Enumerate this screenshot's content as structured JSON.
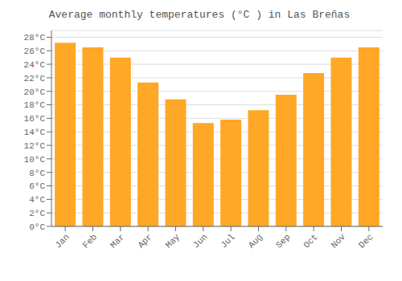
{
  "chart_data": {
    "type": "bar",
    "title": "Average monthly temperatures (°C ) in Las Breñas",
    "categories": [
      "Jan",
      "Feb",
      "Mar",
      "Apr",
      "May",
      "Jun",
      "Jul",
      "Aug",
      "Sep",
      "Oct",
      "Nov",
      "Dec"
    ],
    "values": [
      27.2,
      26.5,
      25.0,
      21.3,
      18.8,
      15.3,
      15.8,
      17.2,
      19.5,
      22.7,
      25.0,
      26.5
    ],
    "color": "#FFA726",
    "ylim": [
      0,
      29
    ],
    "yticks": [
      {
        "value": 0,
        "label": "0°C"
      },
      {
        "value": 2,
        "label": "2°C"
      },
      {
        "value": 4,
        "label": "4°C"
      },
      {
        "value": 6,
        "label": "6°C"
      },
      {
        "value": 8,
        "label": "8°C"
      },
      {
        "value": 10,
        "label": "10°C"
      },
      {
        "value": 12,
        "label": "12°C"
      },
      {
        "value": 14,
        "label": "14°C"
      },
      {
        "value": 16,
        "label": "16°C"
      },
      {
        "value": 18,
        "label": "18°C"
      },
      {
        "value": 20,
        "label": "20°C"
      },
      {
        "value": 22,
        "label": "22°C"
      },
      {
        "value": 24,
        "label": "24°C"
      },
      {
        "value": 26,
        "label": "26°C"
      },
      {
        "value": 28,
        "label": "28°C"
      }
    ],
    "grid": true
  }
}
